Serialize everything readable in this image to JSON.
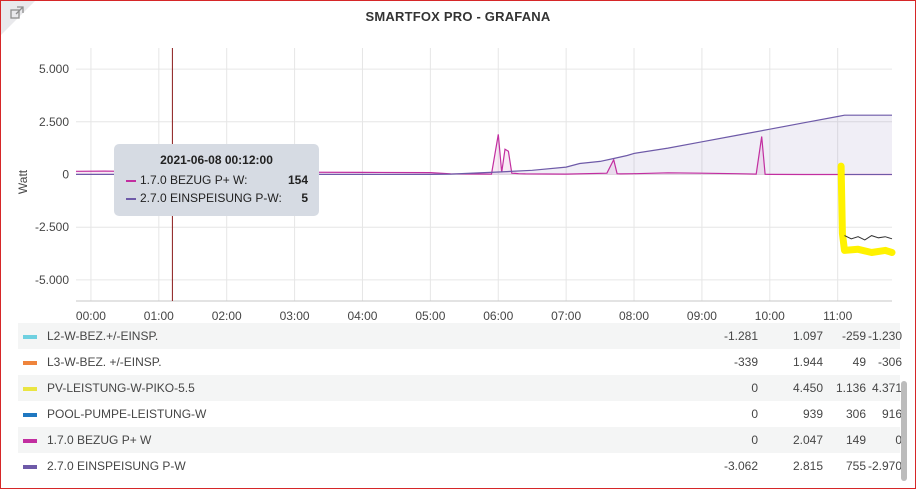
{
  "panel": {
    "title": "SMARTFOX PRO - GRAFANA",
    "link_icon": "external-link-icon"
  },
  "colors": {
    "grid": "#e6e6e6",
    "axis": "#c7c7c7",
    "cursor": "#8b1a1a",
    "bezug": "#c22ea0",
    "einspeisung": "#6e5aa8",
    "pv_highlight": "#fff200",
    "l2": "#6ed0e0",
    "l3": "#ef843c",
    "pv": "#eae542",
    "pool": "#1f78c1",
    "border": "#d62728"
  },
  "chart_data": {
    "type": "line",
    "ylabel": "Watt",
    "yticks": [
      "5.000",
      "2.500",
      "0",
      "-2.500",
      "-5.000"
    ],
    "ytick_values": [
      5000,
      2500,
      0,
      -2500,
      -5000
    ],
    "ylim": [
      -6000,
      6000
    ],
    "xticks": [
      "00:00",
      "01:00",
      "02:00",
      "03:00",
      "04:00",
      "05:00",
      "06:00",
      "07:00",
      "08:00",
      "09:00",
      "10:00",
      "11:00"
    ],
    "xtick_hours": [
      0,
      1,
      2,
      3,
      4,
      5,
      6,
      7,
      8,
      9,
      10,
      11
    ],
    "xlim_hours": [
      -0.22,
      11.8
    ],
    "cursor_hour": 1.2,
    "grid": true,
    "series": [
      {
        "name": "1.7.0 BEZUG P+ W",
        "color_key": "bezug",
        "x": [
          -0.22,
          0.2,
          0.5,
          1.0,
          1.5,
          2.0,
          3.0,
          4.0,
          5.0,
          5.3,
          5.9,
          6.0,
          6.05,
          6.1,
          6.15,
          6.2,
          6.25,
          6.3,
          6.4,
          7.0,
          7.6,
          7.7,
          7.75,
          7.8,
          8.0,
          8.5,
          9.0,
          9.5,
          9.8,
          9.88,
          9.93,
          10.0,
          10.5,
          11.0,
          11.1,
          11.2,
          11.5,
          11.8
        ],
        "y": [
          154,
          160,
          150,
          140,
          130,
          120,
          110,
          100,
          90,
          30,
          20,
          1900,
          100,
          1200,
          1100,
          60,
          50,
          40,
          30,
          20,
          60,
          700,
          40,
          30,
          40,
          80,
          60,
          40,
          20,
          1800,
          10,
          5,
          0,
          0,
          0,
          0,
          0,
          0
        ]
      },
      {
        "name": "2.7.0 EINSPEISUNG P-W",
        "color_key": "einspeisung",
        "x": [
          -0.22,
          0.5,
          1.0,
          2.0,
          3.0,
          4.0,
          5.0,
          5.3,
          6.0,
          6.5,
          7.0,
          7.2,
          7.5,
          7.7,
          7.9,
          8.0,
          8.5,
          9.0,
          9.5,
          10.0,
          10.5,
          11.0,
          11.1,
          11.8
        ],
        "y": [
          5,
          5,
          5,
          5,
          5,
          5,
          5,
          20,
          120,
          200,
          350,
          520,
          620,
          760,
          900,
          1000,
          1250,
          1550,
          1850,
          2150,
          2450,
          2750,
          2815,
          2815
        ]
      },
      {
        "name": "PV-LEISTUNG-W-PIKO-5.5",
        "color_key": "pv_highlight",
        "x": [
          11.05,
          11.07,
          11.1,
          11.3,
          11.5,
          11.7,
          11.8
        ],
        "y": [
          400,
          -2800,
          -3600,
          -3550,
          -3700,
          -3600,
          -3700
        ]
      },
      {
        "name": "L2-W-BEZ.+/-EINSP.",
        "color_key": "l2",
        "x": [
          11.1,
          11.2,
          11.3,
          11.4,
          11.5,
          11.6,
          11.7,
          11.8
        ],
        "y": [
          -2900,
          -3050,
          -2950,
          -3100,
          -2900,
          -3000,
          -2950,
          -3050
        ]
      }
    ]
  },
  "tooltip": {
    "time": "2021-06-08 00:12:00",
    "rows": [
      {
        "name": "1.7.0 BEZUG P+ W:",
        "value": "154",
        "color_key": "bezug"
      },
      {
        "name": "2.7.0 EINSPEISUNG P-W:",
        "value": "5",
        "color_key": "einspeisung"
      }
    ]
  },
  "legend": [
    {
      "name": "L2-W-BEZ.+/-EINSP.",
      "color_key": "l2",
      "values": [
        "-1.281",
        "1.097",
        "-259",
        "-1.230"
      ]
    },
    {
      "name": "L3-W-BEZ. +/-EINSP.",
      "color_key": "l3",
      "values": [
        "-339",
        "1.944",
        "49",
        "-306"
      ]
    },
    {
      "name": "PV-LEISTUNG-W-PIKO-5.5",
      "color_key": "pv",
      "values": [
        "0",
        "4.450",
        "1.136",
        "4.371"
      ]
    },
    {
      "name": "POOL-PUMPE-LEISTUNG-W",
      "color_key": "pool",
      "values": [
        "0",
        "939",
        "306",
        "916"
      ]
    },
    {
      "name": "1.7.0 BEZUG P+ W",
      "color_key": "bezug",
      "values": [
        "0",
        "2.047",
        "149",
        "0"
      ]
    },
    {
      "name": "2.7.0 EINSPEISUNG P-W",
      "color_key": "einspeisung",
      "values": [
        "-3.062",
        "2.815",
        "755",
        "-2.970"
      ]
    }
  ]
}
